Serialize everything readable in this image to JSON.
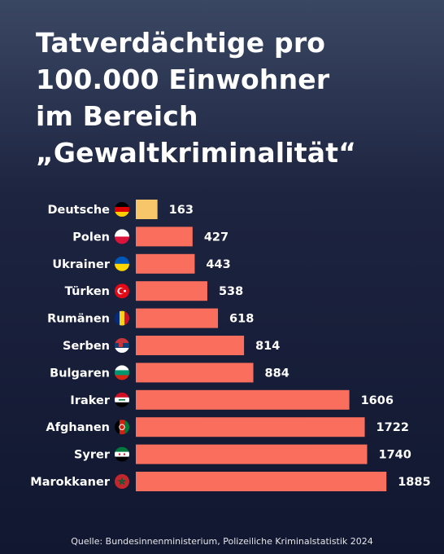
{
  "title_lines": [
    "Tatverdächtige pro",
    "100.000 Einwohner",
    "im Bereich",
    "„Gewaltkriminalität“"
  ],
  "source": "Quelle: Bundesinnenministerium, Polizeiliche Kriminalstatistik 2024",
  "colors": {
    "highlight_bar": "#f7c66b",
    "bar": "#fa6e5d",
    "text": "#ffffff"
  },
  "chart_data": {
    "type": "bar",
    "orientation": "horizontal",
    "categories": [
      "Deutsche",
      "Polen",
      "Ukrainer",
      "Türken",
      "Rumänen",
      "Serben",
      "Bulgaren",
      "Iraker",
      "Afghanen",
      "Syrer",
      "Marokkaner"
    ],
    "values": [
      163,
      427,
      443,
      538,
      618,
      814,
      884,
      1606,
      1722,
      1740,
      1885
    ],
    "flag_icons": [
      "flag-germany-icon",
      "flag-poland-icon",
      "flag-ukraine-icon",
      "flag-turkey-icon",
      "flag-romania-icon",
      "flag-serbia-icon",
      "flag-bulgaria-icon",
      "flag-iraq-icon",
      "flag-afghanistan-icon",
      "flag-syria-icon",
      "flag-morocco-icon"
    ],
    "highlight_category": "Deutsche",
    "grid": false,
    "legend": "none"
  }
}
